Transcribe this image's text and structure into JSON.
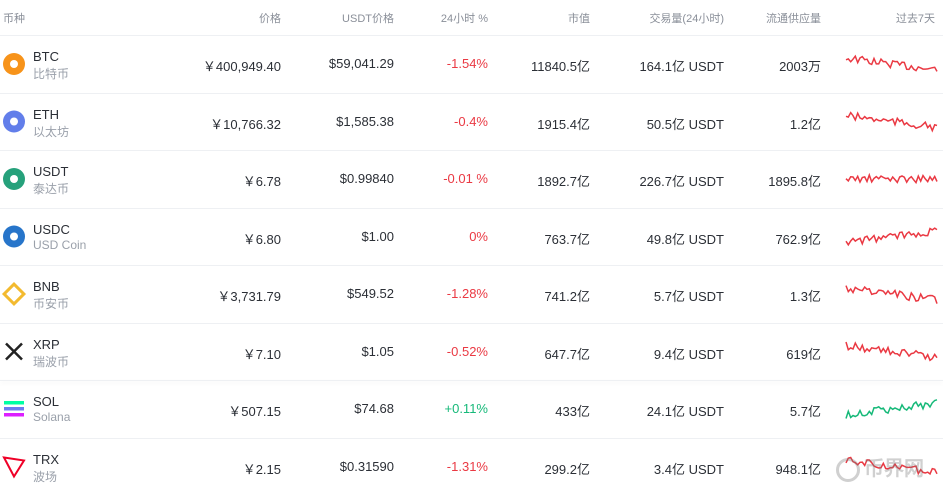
{
  "table": {
    "header": [
      "币种",
      "价格",
      "USDT价格",
      "24小时 %",
      "市值",
      "交易量(24小时)",
      "流通供应量",
      "过去7天"
    ],
    "rows": [
      [
        "BTC",
        "比特币",
        "￥400,949.40",
        "$59,041.29",
        "-1.54%",
        "11840.5亿",
        "164.1亿 USDT",
        "2003万"
      ],
      [
        "ETH",
        "以太坊",
        "￥10,766.32",
        "$1,585.38",
        "-0.4%",
        "1915.4亿",
        "50.5亿 USDT",
        "1.2亿"
      ],
      [
        "USDT",
        "泰达币",
        "￥6.78",
        "$0.99840",
        "-0.01 %",
        "1892.7亿",
        "226.7亿 USDT",
        "1895.8亿"
      ],
      [
        "USDC",
        "USD Coin",
        "￥6.80",
        "$1.00",
        "0%",
        "763.7亿",
        "49.8亿 USDT",
        "762.9亿"
      ],
      [
        "BNB",
        "币安币",
        "￥3,731.79",
        "$549.52",
        "-1.28%",
        "741.2亿",
        "5.7亿 USDT",
        "1.3亿"
      ],
      [
        "XRP",
        "瑞波币",
        "￥7.10",
        "$1.05",
        "-0.52%",
        "647.7亿",
        "9.4亿 USDT",
        "619亿"
      ],
      [
        "SOL",
        "Solana",
        "￥507.15",
        "$74.68",
        "+0.11%",
        "433亿",
        "24.1亿 USDT",
        "5.7亿"
      ],
      [
        "TRX",
        "波场",
        "￥2.15",
        "$0.31590",
        "-1.31%",
        "299.2亿",
        "3.4亿 USDT",
        "948.1亿"
      ]
    ]
  },
  "watermark": "币界网"
}
